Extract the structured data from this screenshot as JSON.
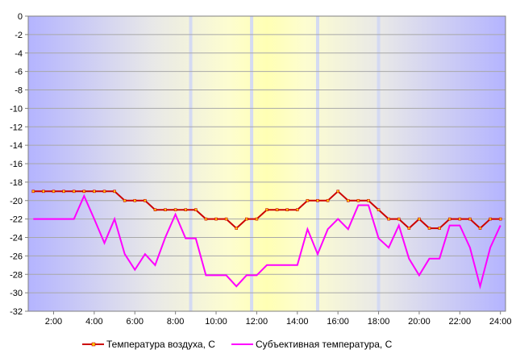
{
  "chart_data": {
    "type": "line",
    "x": [
      "1:00",
      "1:30",
      "2:00",
      "2:30",
      "3:00",
      "3:30",
      "4:00",
      "4:30",
      "5:00",
      "5:30",
      "6:00",
      "6:30",
      "7:00",
      "7:30",
      "8:00",
      "8:30",
      "9:00",
      "9:30",
      "10:00",
      "10:30",
      "11:00",
      "11:30",
      "12:00",
      "12:30",
      "13:00",
      "13:30",
      "14:00",
      "14:30",
      "15:00",
      "15:30",
      "16:00",
      "16:30",
      "17:00",
      "17:30",
      "18:00",
      "18:30",
      "19:00",
      "19:30",
      "20:00",
      "20:30",
      "21:00",
      "21:30",
      "22:00",
      "22:30",
      "23:00",
      "23:30",
      "24:00"
    ],
    "x_ticks": [
      "2:00",
      "4:00",
      "6:00",
      "8:00",
      "10:00",
      "12:00",
      "14:00",
      "16:00",
      "18:00",
      "20:00",
      "22:00",
      "24:00"
    ],
    "y_ticks": [
      "0",
      "-2",
      "-4",
      "-6",
      "-8",
      "-10",
      "-12",
      "-14",
      "-16",
      "-18",
      "-20",
      "-22",
      "-24",
      "-26",
      "-28",
      "-30",
      "-32"
    ],
    "ylim": [
      -32,
      0
    ],
    "grid": true,
    "legend_position": "bottom",
    "series": [
      {
        "name": "Температура воздуха, С",
        "color": "#cc0000",
        "marker_color": "#ffcc00",
        "values": [
          -19,
          -19,
          -19,
          -19,
          -19,
          -19,
          -19,
          -19,
          -19,
          -20,
          -20,
          -20,
          -21,
          -21,
          -21,
          -21,
          -21,
          -22,
          -22,
          -22,
          -23,
          -22,
          -22,
          -21,
          -21,
          -21,
          -21,
          -20,
          -20,
          -20,
          -19,
          -20,
          -20,
          -20,
          -21,
          -22,
          -22,
          -23,
          -22,
          -23,
          -23,
          -22,
          -22,
          -22,
          -23,
          -22,
          -22
        ]
      },
      {
        "name": "Субъективная температура, С",
        "color": "#ff00ff",
        "values": [
          -22,
          -22,
          -22,
          -22,
          -22,
          -19.5,
          -22,
          -24.6,
          -22,
          -25.8,
          -27.5,
          -25.8,
          -27,
          -24,
          -21.5,
          -24.1,
          -24.1,
          -28.1,
          -28.1,
          -28.1,
          -29.3,
          -28.1,
          -28.1,
          -27,
          -27,
          -27,
          -27,
          -23.1,
          -25.8,
          -23.1,
          -22,
          -23.1,
          -20.5,
          -20.5,
          -24.1,
          -25.1,
          -22.7,
          -26.3,
          -28.1,
          -26.3,
          -26.3,
          -22.7,
          -22.7,
          -25.1,
          -29.3,
          -25.1,
          -22.7
        ]
      }
    ]
  }
}
